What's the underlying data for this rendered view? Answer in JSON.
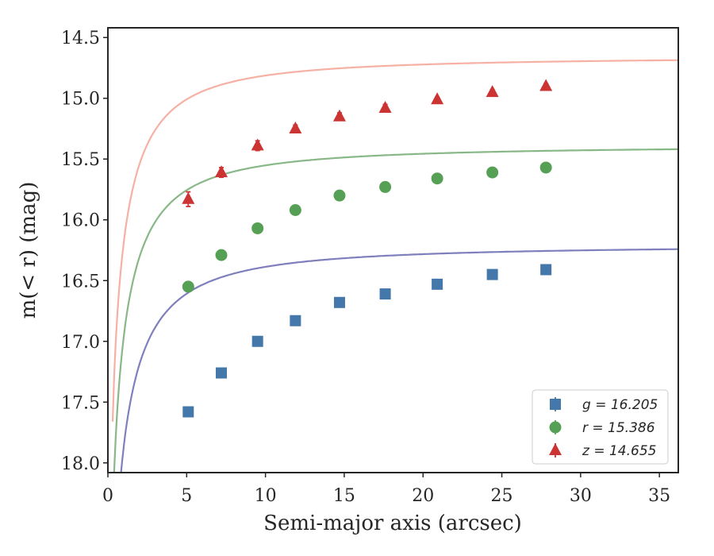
{
  "chart_data": {
    "type": "scatter",
    "title": "",
    "xlabel": "Semi-major axis (arcsec)",
    "ylabel": "m(< r) (mag)",
    "xlim": [
      0,
      36.2
    ],
    "ylim": [
      18.08,
      14.42
    ],
    "y_inverted": true,
    "xticks": [
      0,
      5,
      10,
      15,
      20,
      25,
      30,
      35
    ],
    "yticks": [
      14.5,
      15.0,
      15.5,
      16.0,
      16.5,
      17.0,
      17.5,
      18.0
    ],
    "xtick_labels": [
      "0",
      "5",
      "10",
      "15",
      "20",
      "25",
      "30",
      "35"
    ],
    "ytick_labels": [
      "14.5",
      "15.0",
      "15.5",
      "16.0",
      "16.5",
      "17.0",
      "17.5",
      "18.0"
    ],
    "grid": false,
    "legend_position": "bottom-right",
    "x": [
      5.1,
      7.2,
      9.5,
      11.9,
      14.7,
      17.6,
      20.9,
      24.4,
      27.8
    ],
    "series": [
      {
        "name": "g",
        "label": "g = 16.205",
        "marker": "square",
        "color": "#4477aa",
        "curve_color": "#7f7fbe",
        "values": [
          17.58,
          17.26,
          17.0,
          16.83,
          16.68,
          16.61,
          16.53,
          16.45,
          16.41
        ],
        "errors": [
          0.03,
          0.03,
          0.02,
          0.02,
          0.02,
          0.02,
          0.02,
          0.02,
          0.02
        ],
        "fit_asymptote": 16.205,
        "fit_scale": 2.7
      },
      {
        "name": "r",
        "label": "r = 15.386",
        "marker": "circle",
        "color": "#55a055",
        "curve_color": "#88b888",
        "values": [
          16.55,
          16.29,
          16.07,
          15.92,
          15.8,
          15.73,
          15.66,
          15.61,
          15.57
        ],
        "errors": [
          0.04,
          0.02,
          0.02,
          0.02,
          0.02,
          0.02,
          0.02,
          0.02,
          0.02
        ],
        "fit_asymptote": 15.386,
        "fit_scale": 2.5
      },
      {
        "name": "z",
        "label": "z = 14.655",
        "marker": "triangle",
        "color": "#cc3333",
        "curve_color": "#f6b0a4",
        "values": [
          15.83,
          15.61,
          15.39,
          15.25,
          15.15,
          15.08,
          15.01,
          14.95,
          14.9
        ],
        "errors": [
          0.06,
          0.04,
          0.04,
          0.03,
          0.03,
          0.03,
          0.02,
          0.02,
          0.02
        ],
        "fit_asymptote": 14.655,
        "fit_scale": 2.4
      }
    ]
  }
}
